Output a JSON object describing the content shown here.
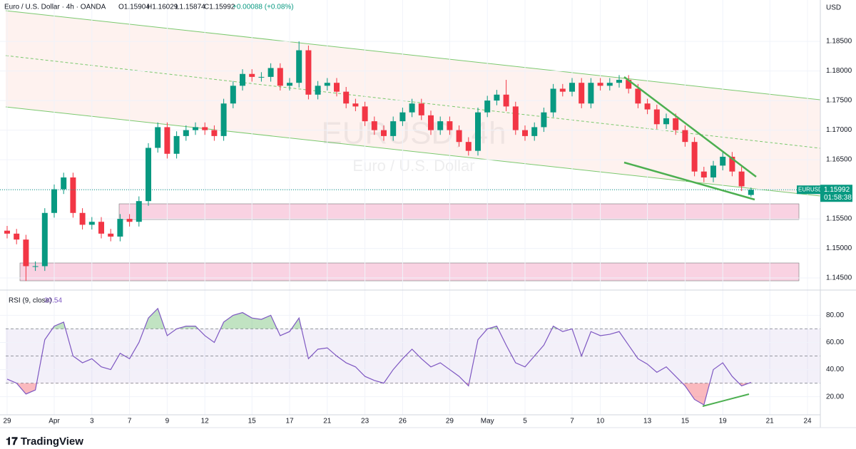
{
  "chart_data": [
    {
      "type": "candlestick",
      "header": {
        "symbol": "Euro / U.S. Dollar · 4h · OANDA",
        "open": "O1.15904",
        "high": "H1.16029",
        "low": "L1.15874",
        "close": "C1.15992",
        "change": "+0.00088 (+0.08%)"
      },
      "watermark": "EURUSD, 4h",
      "watermark_sub": "Euro / U.S. Dollar",
      "currency": "USD",
      "symbol_tag": "EURUSD",
      "countdown": "01:58:38",
      "up_color": "#089981",
      "down_color": "#f23645",
      "grid": true,
      "categories": [
        "29",
        null,
        null,
        null,
        null,
        "Apr",
        null,
        null,
        null,
        "3",
        null,
        null,
        null,
        "7",
        null,
        null,
        null,
        "9",
        null,
        null,
        null,
        "12",
        null,
        null,
        null,
        null,
        "15",
        null,
        null,
        null,
        "17",
        null,
        null,
        null,
        "21",
        null,
        null,
        null,
        "23",
        null,
        null,
        null,
        "26",
        null,
        null,
        null,
        null,
        "29",
        null,
        null,
        null,
        "May",
        null,
        null,
        null,
        "5",
        null,
        null,
        null,
        null,
        "7",
        null,
        null,
        "10",
        null,
        null,
        null,
        null,
        "13",
        null,
        null,
        null,
        "15",
        null,
        null,
        null,
        "19",
        null,
        null,
        null,
        null,
        "21",
        null,
        null,
        null,
        "24"
      ],
      "open": [
        1.153,
        1.1525,
        1.1515,
        1.147,
        1.147,
        1.156,
        1.16,
        1.162,
        1.156,
        1.154,
        1.1545,
        1.1525,
        1.152,
        1.155,
        1.1545,
        1.158,
        1.167,
        1.1705,
        1.166,
        1.169,
        1.17,
        1.1705,
        1.17,
        1.169,
        1.1745,
        1.1775,
        1.1795,
        1.179,
        1.179,
        1.1805,
        1.1775,
        1.178,
        1.1835,
        1.176,
        1.1775,
        1.178,
        1.1765,
        1.1745,
        1.174,
        1.1715,
        1.17,
        1.169,
        1.1715,
        1.173,
        1.1745,
        1.1725,
        1.17,
        1.1715,
        1.17,
        1.168,
        1.1665,
        1.173,
        1.175,
        1.176,
        1.174,
        1.17,
        1.169,
        1.1705,
        1.173,
        1.177,
        1.1765,
        1.178,
        1.1745,
        1.178,
        1.1775,
        1.178,
        1.1785,
        1.177,
        1.1745,
        1.1735,
        1.171,
        1.172,
        1.17,
        1.168,
        1.163,
        1.162,
        1.164,
        1.1655,
        1.163,
        1.15904,
        null,
        null,
        null,
        null,
        null,
        null
      ],
      "high": [
        1.1538,
        1.1533,
        1.1523,
        1.1478,
        1.1568,
        1.1608,
        1.1628,
        1.1628,
        1.1568,
        1.1553,
        1.1553,
        1.1533,
        1.1558,
        1.1558,
        1.1588,
        1.1678,
        1.1713,
        1.1713,
        1.1698,
        1.1708,
        1.1713,
        1.1713,
        1.1708,
        1.1753,
        1.1783,
        1.1803,
        1.1803,
        1.1798,
        1.1813,
        1.1813,
        1.1788,
        1.185,
        1.1843,
        1.1783,
        1.1788,
        1.1788,
        1.1773,
        1.1753,
        1.1748,
        1.1723,
        1.1708,
        1.1723,
        1.1738,
        1.1753,
        1.1753,
        1.1733,
        1.1723,
        1.1723,
        1.1708,
        1.1688,
        1.1738,
        1.1758,
        1.1768,
        1.1785,
        1.1748,
        1.1708,
        1.1713,
        1.1738,
        1.1778,
        1.1778,
        1.1788,
        1.1788,
        1.1788,
        1.1788,
        1.1788,
        1.1793,
        1.1793,
        1.1778,
        1.1753,
        1.1743,
        1.1728,
        1.1728,
        1.1708,
        1.1688,
        1.1638,
        1.1648,
        1.1663,
        1.1663,
        1.1638,
        1.16029,
        null,
        null,
        null,
        null,
        null,
        null
      ],
      "low": [
        1.1517,
        1.1507,
        1.1445,
        1.1462,
        1.1462,
        1.1552,
        1.1592,
        1.1552,
        1.1532,
        1.1532,
        1.1517,
        1.1512,
        1.1512,
        1.1537,
        1.1537,
        1.1572,
        1.1662,
        1.1652,
        1.1652,
        1.1682,
        1.1692,
        1.1692,
        1.1682,
        1.1682,
        1.1737,
        1.1767,
        1.1782,
        1.1782,
        1.1782,
        1.1767,
        1.1767,
        1.1772,
        1.1752,
        1.1752,
        1.1767,
        1.1757,
        1.1737,
        1.1732,
        1.1707,
        1.1692,
        1.1682,
        1.1682,
        1.1707,
        1.1722,
        1.1717,
        1.1692,
        1.1692,
        1.1692,
        1.1672,
        1.1657,
        1.1657,
        1.1722,
        1.1742,
        1.1732,
        1.1692,
        1.1682,
        1.1682,
        1.1697,
        1.1722,
        1.1757,
        1.1757,
        1.1737,
        1.1737,
        1.1767,
        1.1767,
        1.1772,
        1.1762,
        1.1737,
        1.1727,
        1.1702,
        1.1702,
        1.1692,
        1.1672,
        1.1622,
        1.1612,
        1.1612,
        1.1632,
        1.1622,
        1.1597,
        1.15874,
        null,
        null,
        null,
        null,
        null,
        null
      ],
      "close": [
        1.1525,
        1.1515,
        1.147,
        1.147,
        1.156,
        1.16,
        1.162,
        1.156,
        1.154,
        1.1545,
        1.1525,
        1.152,
        1.155,
        1.1545,
        1.158,
        1.167,
        1.1705,
        1.166,
        1.169,
        1.17,
        1.1705,
        1.17,
        1.169,
        1.1745,
        1.1775,
        1.1795,
        1.179,
        1.179,
        1.1805,
        1.1775,
        1.178,
        1.1835,
        1.176,
        1.1775,
        1.178,
        1.1765,
        1.1745,
        1.174,
        1.1715,
        1.17,
        1.169,
        1.1715,
        1.173,
        1.1745,
        1.1725,
        1.17,
        1.1715,
        1.17,
        1.168,
        1.1665,
        1.173,
        1.175,
        1.176,
        1.174,
        1.17,
        1.169,
        1.1705,
        1.173,
        1.177,
        1.1765,
        1.178,
        1.1745,
        1.178,
        1.1775,
        1.178,
        1.1785,
        1.177,
        1.1745,
        1.1735,
        1.171,
        1.172,
        1.17,
        1.168,
        1.163,
        1.162,
        1.164,
        1.1655,
        1.163,
        1.1605,
        1.15992,
        null,
        null,
        null,
        null,
        null,
        null
      ],
      "ylim": [
        1.1432,
        1.192
      ],
      "yticks": [
        {
          "value": 1.185,
          "label": "1.18500"
        },
        {
          "value": 1.18,
          "label": "1.18000"
        },
        {
          "value": 1.175,
          "label": "1.17500"
        },
        {
          "value": 1.17,
          "label": "1.17000"
        },
        {
          "value": 1.165,
          "label": "1.16500"
        },
        {
          "value": 1.16,
          "label": "1.16000"
        },
        {
          "value": 1.155,
          "label": "1.15500"
        },
        {
          "value": 1.15,
          "label": "1.15000"
        },
        {
          "value": 1.145,
          "label": "1.14500"
        }
      ]
    },
    {
      "type": "line",
      "title": "RSI (9, close)",
      "color": "#7e57c2",
      "series": [
        {
          "name": "RSI",
          "color": "#7e57c2",
          "values": [
            33,
            30,
            22,
            25,
            62,
            72,
            75,
            50,
            45,
            48,
            42,
            40,
            52,
            48,
            60,
            78,
            85,
            65,
            70,
            72,
            72,
            65,
            60,
            75,
            80,
            82,
            78,
            77,
            80,
            65,
            68,
            78,
            48,
            55,
            56,
            50,
            45,
            42,
            35,
            32,
            30,
            40,
            48,
            55,
            48,
            42,
            45,
            40,
            35,
            28,
            62,
            70,
            72,
            58,
            45,
            42,
            50,
            58,
            72,
            68,
            70,
            50,
            68,
            65,
            66,
            68,
            58,
            48,
            44,
            38,
            42,
            35,
            28,
            18,
            14,
            40,
            45,
            35,
            28,
            30.54,
            null,
            null,
            null,
            null,
            null,
            null
          ]
        }
      ],
      "levels": [
        70,
        50,
        30
      ],
      "ylim": [
        6.7,
        97
      ],
      "yticks": [
        {
          "value": 80,
          "label": "80.00"
        },
        {
          "value": 60,
          "label": "60.00"
        },
        {
          "value": 40,
          "label": "40.00"
        },
        {
          "value": 20,
          "label": "20.00"
        }
      ]
    }
  ]
}
